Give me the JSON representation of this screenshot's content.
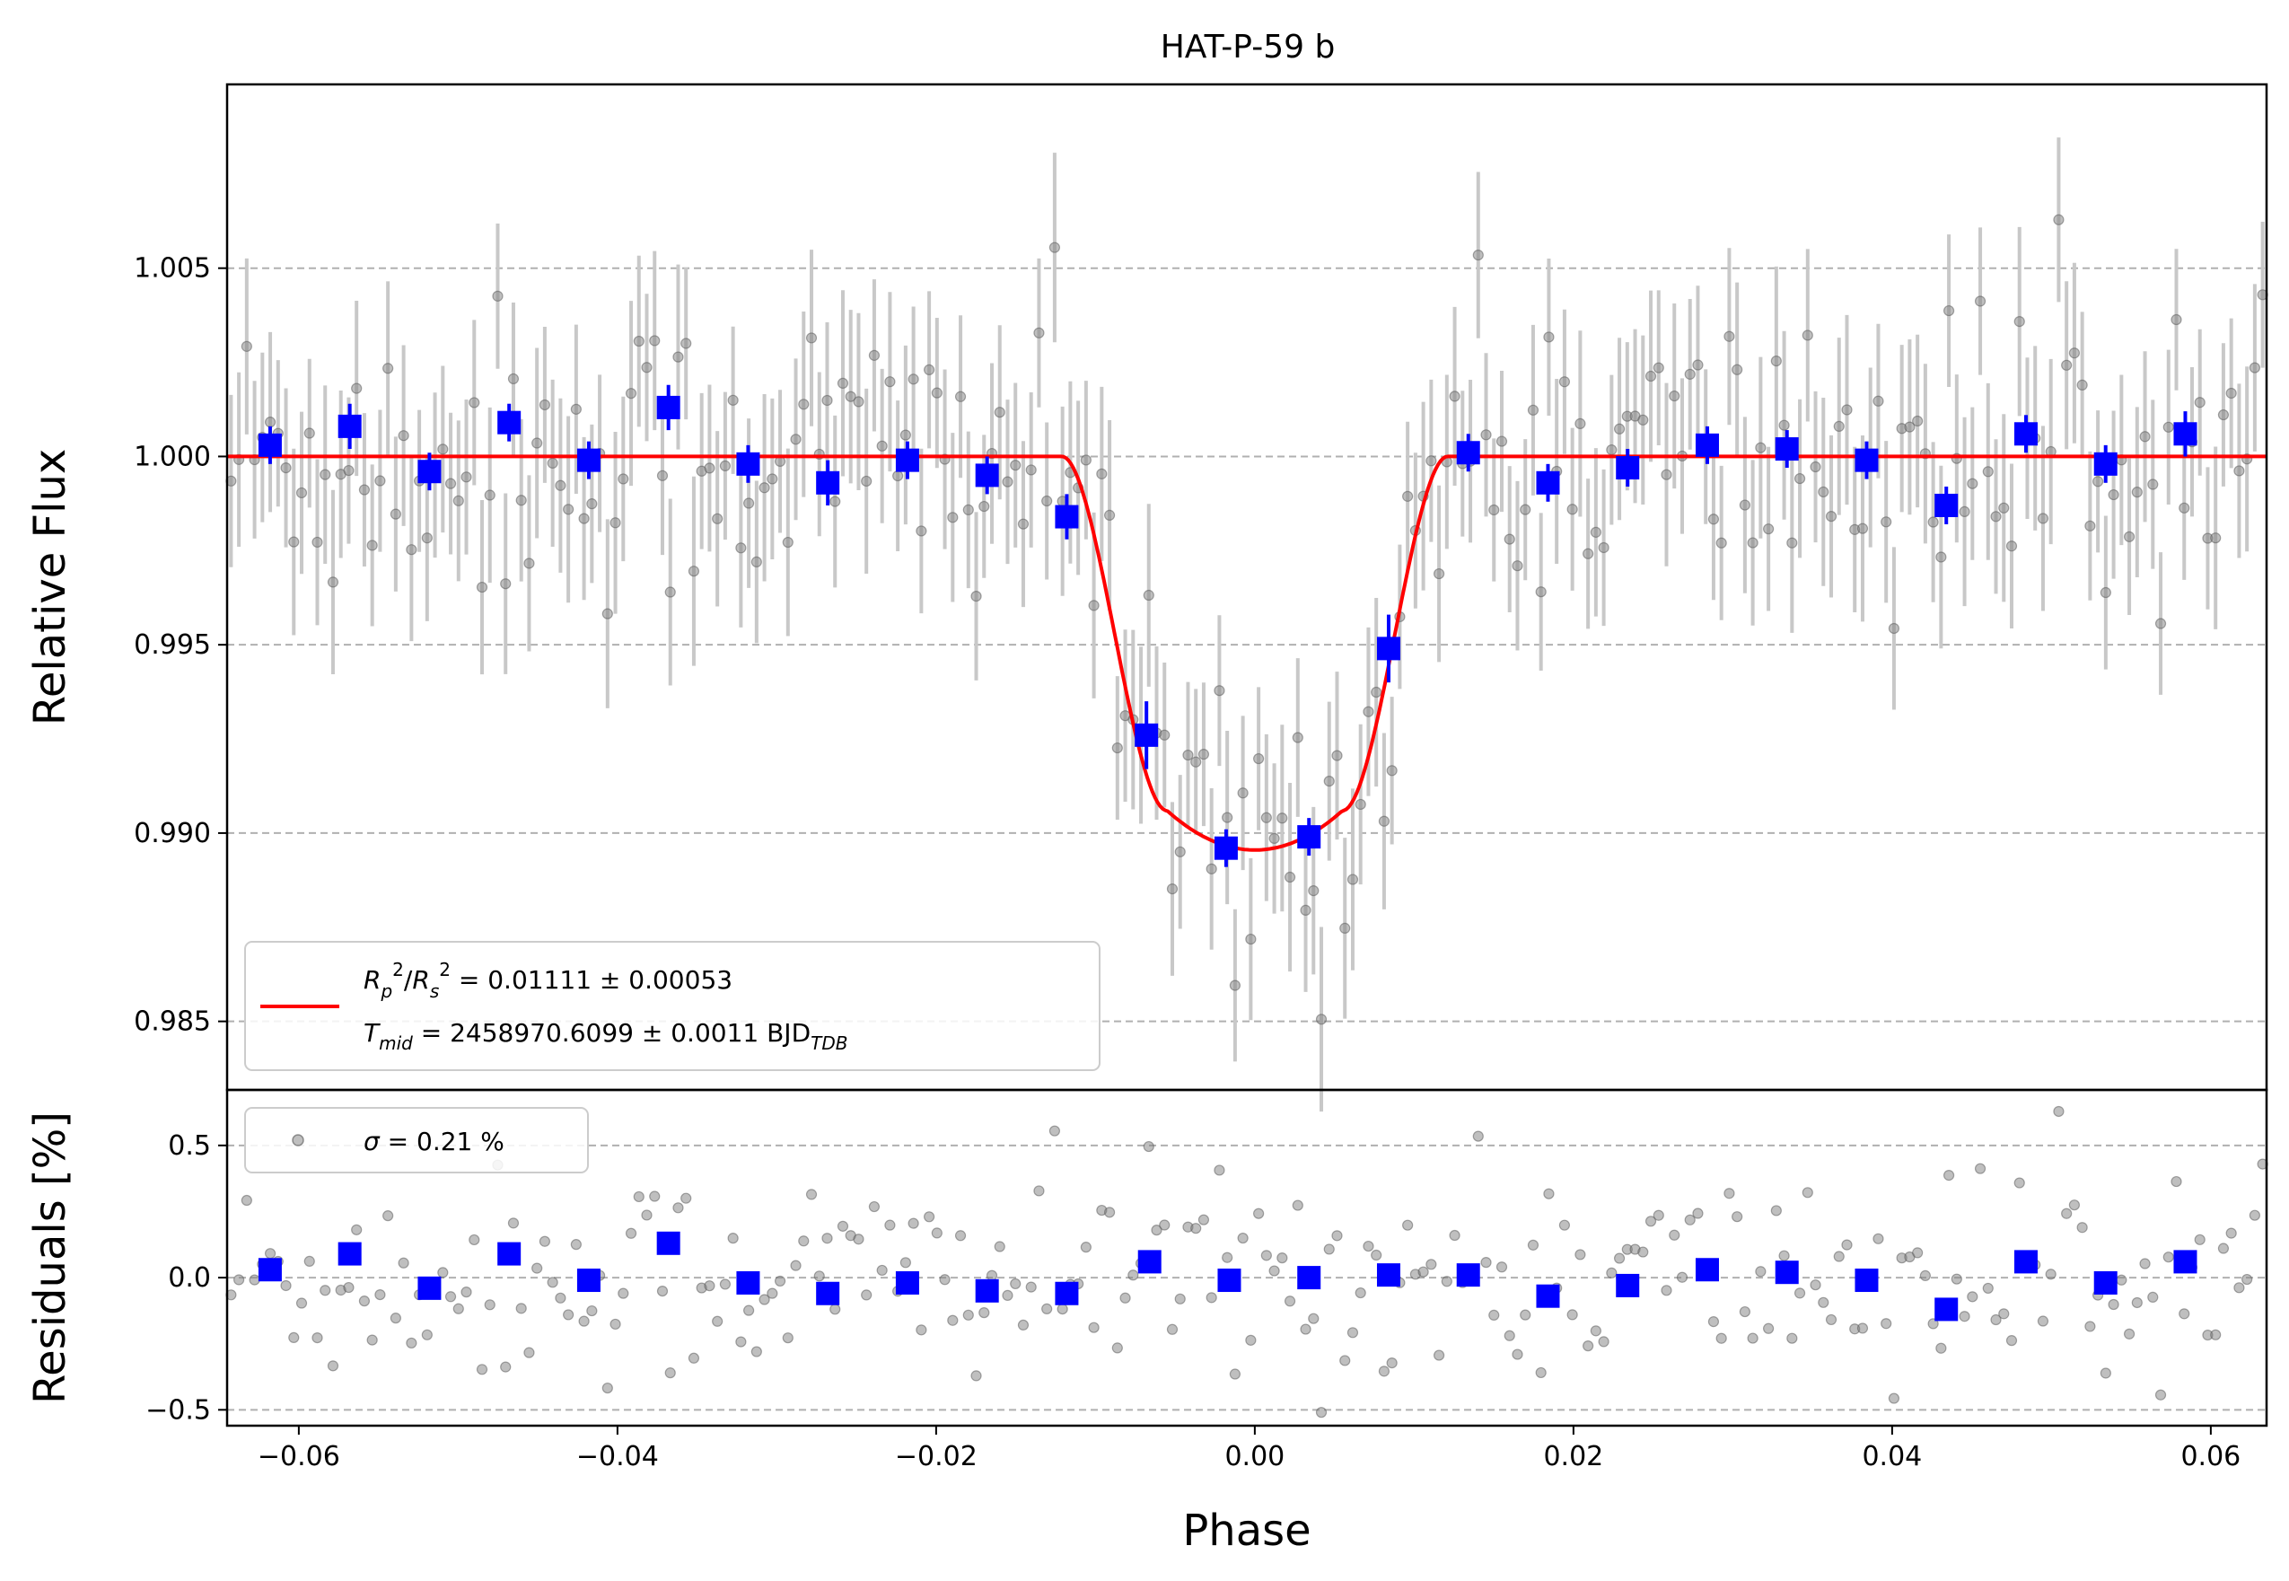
{
  "chart_data": [
    {
      "type": "scatter",
      "title": "HAT-P-59 b",
      "xlabel": "",
      "ylabel": "Relative Flux",
      "xlim": [
        -0.0645,
        0.0635
      ],
      "ylim": [
        0.98318,
        1.00988
      ],
      "grid": "horizontal dashed",
      "yticks": [
        0.985,
        0.99,
        0.995,
        1.0,
        1.005
      ],
      "ytick_labels": [
        "0.985",
        "0.990",
        "0.995",
        "1.000",
        "1.005"
      ],
      "legend": {
        "placement": "lower-left",
        "line1_var": "R",
        "line1_text": " = 0.01111 ± 0.00053",
        "line2_var": "T",
        "line2_sub": "mid",
        "line2_text": " = 2458970.6099 ± 0.0011 BJD",
        "line2_unit_sub": "TDB"
      },
      "model": {
        "color": "#ff0000",
        "depth": 0.01045,
        "t1": 0.0121,
        "t2": 0.0055,
        "phase_min": [
          -0.06,
          0.06
        ]
      },
      "raw_points": {
        "color": "#808080",
        "errorbar_color": "#c8c8c8",
        "phase_start": -0.0645,
        "phase_end": 0.0635,
        "count": 260,
        "scatter_sigma": 0.0021,
        "errorbar_halfwidth": 0.0022
      },
      "binned": {
        "color": "#0000ff",
        "x": [
          -0.0618,
          -0.0568,
          -0.0518,
          -0.0468,
          -0.0418,
          -0.0368,
          -0.0318,
          -0.0268,
          -0.0218,
          -0.0168,
          -0.0118,
          -0.0068,
          -0.0018,
          0.0034,
          0.0084,
          0.0134,
          0.0184,
          0.0234,
          0.0284,
          0.0334,
          0.0384,
          0.0434,
          0.0484,
          0.0534,
          0.0584
        ],
        "y": [
          1.0003,
          1.0008,
          0.9996,
          1.0009,
          0.9999,
          1.0013,
          0.9998,
          0.9993,
          0.9999,
          0.9995,
          0.9984,
          0.9926,
          0.9896,
          0.9899,
          0.9949,
          1.0001,
          0.9993,
          0.9997,
          1.0003,
          1.0002,
          0.9999,
          0.9987,
          1.0006,
          0.9998,
          1.0006
        ],
        "err": [
          0.0005,
          0.0006,
          0.0005,
          0.0005,
          0.0005,
          0.0006,
          0.0005,
          0.0006,
          0.0005,
          0.0005,
          0.0006,
          0.0009,
          0.0005,
          0.0005,
          0.0009,
          0.0005,
          0.0005,
          0.0005,
          0.0005,
          0.0005,
          0.0005,
          0.0005,
          0.0005,
          0.0005,
          0.0006
        ]
      }
    },
    {
      "type": "scatter",
      "title": "",
      "xlabel": "Phase",
      "ylabel": "Residuals [%]",
      "xlim": [
        -0.0645,
        0.0635
      ],
      "ylim": [
        -0.56,
        0.71
      ],
      "grid": "horizontal dashed",
      "yticks": [
        -0.5,
        0.0,
        0.5
      ],
      "ytick_labels": [
        "−0.5",
        "0.0",
        "0.5"
      ],
      "xticks": [
        -0.06,
        -0.04,
        -0.02,
        0.0,
        0.02,
        0.04,
        0.06
      ],
      "xtick_labels": [
        "−0.06",
        "−0.04",
        "−0.02",
        "0.00",
        "0.02",
        "0.04",
        "0.06"
      ],
      "legend": {
        "placement": "top-left",
        "sigma_symbol": "σ",
        "sigma_text": " = 0.21 %"
      },
      "binned": {
        "color": "#0000ff",
        "x": [
          -0.0618,
          -0.0568,
          -0.0518,
          -0.0468,
          -0.0418,
          -0.0368,
          -0.0318,
          -0.0268,
          -0.0218,
          -0.0168,
          -0.0118,
          -0.0066,
          -0.0016,
          0.0034,
          0.0084,
          0.0134,
          0.0184,
          0.0234,
          0.0284,
          0.0334,
          0.0384,
          0.0434,
          0.0484,
          0.0534,
          0.0584
        ],
        "y": [
          0.03,
          0.09,
          -0.04,
          0.09,
          -0.01,
          0.13,
          -0.02,
          -0.06,
          -0.02,
          -0.05,
          -0.06,
          0.06,
          -0.01,
          0.0,
          0.01,
          0.01,
          -0.07,
          -0.03,
          0.03,
          0.02,
          -0.01,
          -0.12,
          0.06,
          -0.02,
          0.06
        ]
      }
    }
  ]
}
